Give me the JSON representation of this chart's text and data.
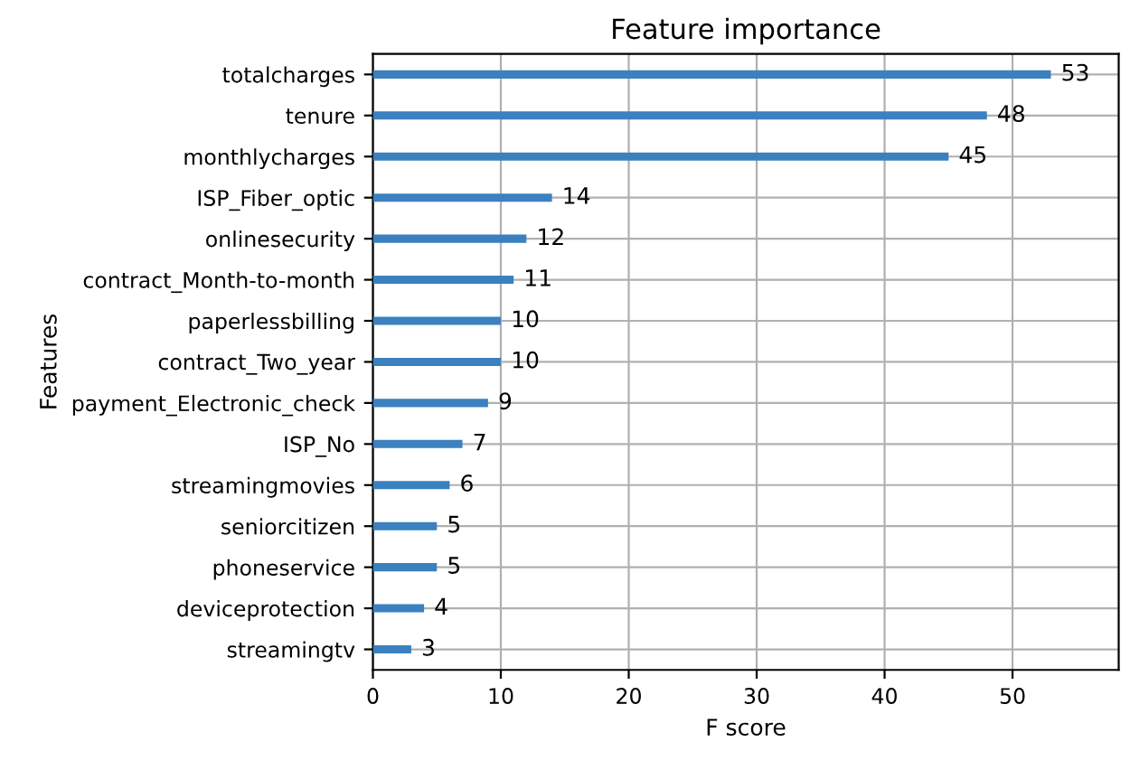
{
  "chart_data": {
    "type": "bar",
    "orientation": "horizontal",
    "title": "Feature importance",
    "xlabel": "F score",
    "ylabel": "Features",
    "categories": [
      "totalcharges",
      "tenure",
      "monthlycharges",
      "ISP_Fiber_optic",
      "onlinesecurity",
      "contract_Month-to-month",
      "paperlessbilling",
      "contract_Two_year",
      "payment_Electronic_check",
      "ISP_No",
      "streamingmovies",
      "seniorcitizen",
      "phoneservice",
      "deviceprotection",
      "streamingtv"
    ],
    "values": [
      53,
      48,
      45,
      14,
      12,
      11,
      10,
      10,
      9,
      7,
      6,
      5,
      5,
      4,
      3
    ],
    "color": "#3b80bf",
    "xlim": [
      0,
      58.3
    ],
    "xticks": [
      0,
      10,
      20,
      30,
      40,
      50
    ],
    "grid": true,
    "data_labels": true
  }
}
